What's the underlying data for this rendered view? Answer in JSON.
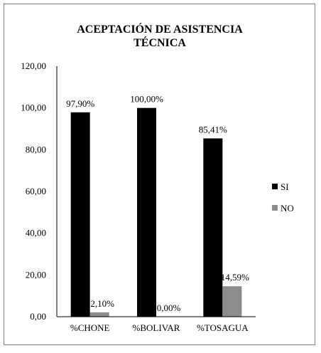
{
  "chart_data": {
    "type": "bar",
    "title_lines": [
      "ACEPTACIÓN DE ASISTENCIA",
      "TÉCNICA"
    ],
    "categories": [
      "%CHONE",
      "%BOLIVAR",
      "%TOSAGUA"
    ],
    "series": [
      {
        "name": "SI",
        "values": [
          97.9,
          100.0,
          85.41
        ],
        "labels": [
          "97,90%",
          "100,00%",
          "85,41%"
        ],
        "color": "#000000"
      },
      {
        "name": "NO",
        "values": [
          2.1,
          0.0,
          14.59
        ],
        "labels": [
          "2,10%",
          "0,00%",
          "14,59%"
        ],
        "color": "#8c8c8c"
      }
    ],
    "yticks": [
      "0,00",
      "20,00",
      "40,00",
      "60,00",
      "80,00",
      "100,00",
      "120,00"
    ],
    "ylim": [
      0,
      120
    ],
    "grid": false,
    "legend_position": "right"
  }
}
